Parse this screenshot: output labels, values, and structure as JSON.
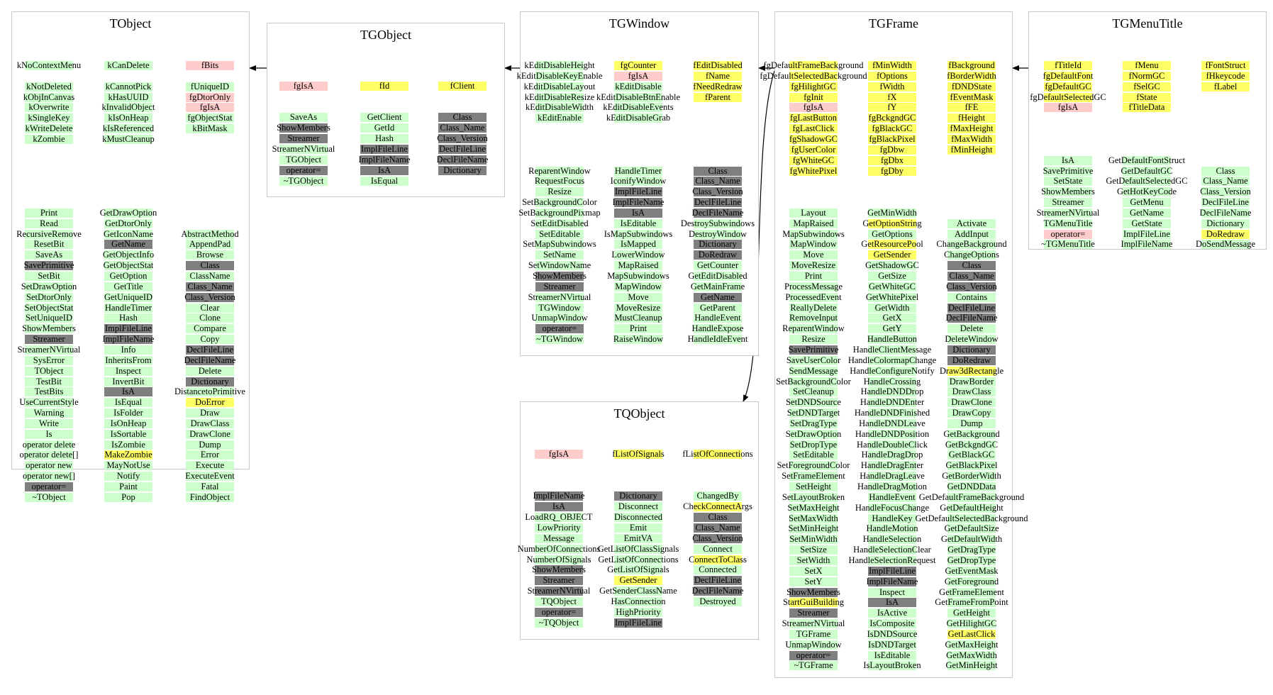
{
  "colors": {
    "green": "#ccffcc",
    "pink": "#ffcccc",
    "yellow": "#ffff66",
    "gray": "#7f7f7f",
    "box_border": "#c8c8c8",
    "edge": "#000000"
  },
  "classes": [
    {
      "name": "TObject",
      "columns": [
        [
          "g:kNoContextMenu",
          "",
          "g:kNotDeleted",
          "g:kObjInCanvas",
          "g:kOverwrite",
          "g:kSingleKey",
          "g:kWriteDelete",
          "g:kZombie",
          "",
          "",
          "",
          "",
          "",
          "",
          "g:Print",
          "g:Read",
          "g:RecursiveRemove",
          "g:ResetBit",
          "g:SaveAs",
          "d:SavePrimitive",
          "g:SetBit",
          "g:SetDrawOption",
          "g:SetDtorOnly",
          "g:SetObjectStat",
          "g:SetUniqueID",
          "g:ShowMembers",
          "d:Streamer",
          "g:StreamerNVirtual",
          "g:SysError",
          "g:TObject",
          "g:TestBit",
          "g:TestBits",
          "g:UseCurrentStyle",
          "g:Warning",
          "g:Write",
          "g:Is",
          "g:operator delete",
          "g:operator delete[]",
          "g:operator new",
          "g:operator new[]",
          "d:operator=",
          "g:~TObject"
        ],
        [
          "g:kCanDelete",
          "",
          "g:kCannotPick",
          "g:kHasUUID",
          "g:kInvalidObject",
          "g:kIsOnHeap",
          "g:kIsReferenced",
          "g:kMustCleanup",
          "",
          "",
          "",
          "",
          "",
          "",
          "g:GetDrawOption",
          "g:GetDtorOnly",
          "g:GetIconName",
          "d:GetName",
          "g:GetObjectInfo",
          "g:GetObjectStat",
          "g:GetOption",
          "g:GetTitle",
          "g:GetUniqueID",
          "g:HandleTimer",
          "g:Hash",
          "d:ImplFileLine",
          "d:ImplFileName",
          "g:Info",
          "g:InheritsFrom",
          "g:Inspect",
          "g:InvertBit",
          "d:IsA",
          "g:IsEqual",
          "g:IsFolder",
          "g:IsOnHeap",
          "g:IsSortable",
          "g:IsZombie",
          "y:MakeZombie",
          "g:MayNotUse",
          "g:Notify",
          "g:Paint",
          "g:Pop"
        ],
        [
          "r:fBits",
          "",
          "g:fUniqueID",
          "r:fgDtorOnly",
          "r:fgIsA",
          "g:fgObjectStat",
          "g:kBitMask",
          "",
          "",
          "",
          "",
          "",
          "",
          "",
          "",
          "",
          "g:AbstractMethod",
          "g:AppendPad",
          "g:Browse",
          "d:Class",
          "g:ClassName",
          "d:Class_Name",
          "d:Class_Version",
          "g:Clear",
          "g:Clone",
          "g:Compare",
          "g:Copy",
          "d:DeclFileLine",
          "d:DeclFileName",
          "g:Delete",
          "d:Dictionary",
          "g:DistancetoPrimitive",
          "y:DoError",
          "g:Draw",
          "g:DrawClass",
          "g:DrawClone",
          "g:Dump",
          "g:Error",
          "g:Execute",
          "g:ExecuteEvent",
          "g:Fatal",
          "g:FindObject"
        ]
      ]
    },
    {
      "name": "TGObject",
      "columns": [
        [
          "",
          "r:fgIsA",
          "",
          "",
          "g:SaveAs",
          "d:ShowMembers",
          "d:Streamer",
          "g:StreamerNVirtual",
          "g:TGObject",
          "d:operator=",
          "g:~TGObject"
        ],
        [
          "",
          "y:fId",
          "",
          "",
          "g:GetClient",
          "g:GetId",
          "g:Hash",
          "d:ImplFileLine",
          "d:ImplFileName",
          "d:IsA",
          "g:IsEqual"
        ],
        [
          "",
          "y:fClient",
          "",
          "",
          "d:Class",
          "d:Class_Name",
          "d:Class_Version",
          "d:DeclFileLine",
          "d:DeclFileName",
          "d:Dictionary",
          ""
        ]
      ]
    },
    {
      "name": "TGWindow",
      "columns": [
        [
          "g:kEditDisableHeight",
          "g:kEditDisableKeyEnable",
          "g:kEditDisableLayout",
          "g:kEditDisableResize",
          "g:kEditDisableWidth",
          "g:kEditEnable",
          "",
          "",
          "",
          "",
          "g:ReparentWindow",
          "g:RequestFocus",
          "g:Resize",
          "g:SetBackgroundColor",
          "g:SetBackgroundPixmap",
          "g:SetEditDisabled",
          "g:SetEditable",
          "g:SetMapSubwindows",
          "g:SetName",
          "g:SetWindowName",
          "d:ShowMembers",
          "d:Streamer",
          "g:StreamerNVirtual",
          "g:TGWindow",
          "g:UnmapWindow",
          "d:operator=",
          "g:~TGWindow"
        ],
        [
          "y:fgCounter",
          "r:fgIsA",
          "g:kEditDisable",
          "g:kEditDisableBtnEnable",
          "g:kEditDisableEvents",
          "g:kEditDisableGrab",
          "",
          "",
          "",
          "",
          "g:HandleTimer",
          "g:IconifyWindow",
          "d:ImplFileLine",
          "d:ImplFileName",
          "d:IsA",
          "g:IsEditable",
          "g:IsMapSubwindows",
          "g:IsMapped",
          "g:LowerWindow",
          "g:MapRaised",
          "g:MapSubwindows",
          "g:MapWindow",
          "g:Move",
          "g:MoveResize",
          "g:MustCleanup",
          "g:Print",
          "g:RaiseWindow"
        ],
        [
          "y:fEditDisabled",
          "y:fName",
          "y:fNeedRedraw",
          "y:fParent",
          "",
          "",
          "",
          "",
          "",
          "",
          "d:Class",
          "d:Class_Name",
          "d:Class_Version",
          "d:DeclFileLine",
          "d:DeclFileName",
          "g:DestroySubwindows",
          "g:DestroyWindow",
          "d:Dictionary",
          "d:DoRedraw",
          "g:GetCounter",
          "g:GetEditDisabled",
          "g:GetMainFrame",
          "d:GetName",
          "g:GetParent",
          "g:HandleEvent",
          "g:HandleExpose",
          "g:HandleIdleEvent"
        ]
      ]
    },
    {
      "name": "TQObject",
      "columns": [
        [
          "r:fgIsA",
          "",
          "",
          "",
          "d:ImplFileName",
          "d:IsA",
          "g:LoadRQ_OBJECT",
          "g:LowPriority",
          "g:Message",
          "g:NumberOfConnections",
          "g:NumberOfSignals",
          "d:ShowMembers",
          "d:Streamer",
          "d:StreamerNVirtual",
          "g:TQObject",
          "d:operator=",
          "g:~TQObject"
        ],
        [
          "y:fListOfSignals",
          "",
          "",
          "",
          "d:Dictionary",
          "g:Disconnect",
          "g:Disconnected",
          "g:Emit",
          "g:EmitVA",
          "g:GetListOfClassSignals",
          "g:GetListOfConnections",
          "g:GetListOfSignals",
          "y:GetSender",
          "g:GetSenderClassName",
          "g:HasConnection",
          "g:HighPriority",
          "d:ImplFileLine"
        ],
        [
          "y:fListOfConnections",
          "",
          "",
          "",
          "g:ChangedBy",
          "y:CheckConnectArgs",
          "d:Class",
          "d:Class_Name",
          "d:Class_Version",
          "g:Connect",
          "y:ConnectToClass",
          "g:Connected",
          "d:DeclFileLine",
          "d:DeclFileName",
          "g:Destroyed",
          "",
          ""
        ]
      ]
    },
    {
      "name": "TGFrame",
      "columns": [
        [
          "y:fgDefaultFrameBackground",
          "y:fgDefaultSelectedBackground",
          "y:fgHilightGC",
          "y:fgInit",
          "r:fgIsA",
          "y:fgLastButton",
          "y:fgLastClick",
          "y:fgShadowGC",
          "y:fgUserColor",
          "y:fgWhiteGC",
          "y:fgWhitePixel",
          "",
          "",
          "",
          "g:Layout",
          "g:MapRaised",
          "g:MapSubwindows",
          "g:MapWindow",
          "g:Move",
          "g:MoveResize",
          "g:Print",
          "g:ProcessMessage",
          "g:ProcessedEvent",
          "g:ReallyDelete",
          "g:RemoveInput",
          "g:ReparentWindow",
          "g:Resize",
          "d:SavePrimitive",
          "g:SaveUserColor",
          "g:SendMessage",
          "g:SetBackgroundColor",
          "g:SetCleanup",
          "g:SetDNDSource",
          "g:SetDNDTarget",
          "g:SetDragType",
          "g:SetDrawOption",
          "g:SetDropType",
          "g:SetEditable",
          "g:SetForegroundColor",
          "g:SetFrameElement",
          "g:SetHeight",
          "g:SetLayoutBroken",
          "g:SetMaxHeight",
          "g:SetMaxWidth",
          "g:SetMinHeight",
          "g:SetMinWidth",
          "g:SetSize",
          "g:SetWidth",
          "g:SetX",
          "g:SetY",
          "d:ShowMembers",
          "y:StartGuiBuilding",
          "d:Streamer",
          "g:StreamerNVirtual",
          "g:TGFrame",
          "g:UnmapWindow",
          "d:operator=",
          "g:~TGFrame"
        ],
        [
          "y:fMinWidth",
          "y:fOptions",
          "y:fWidth",
          "y:fX",
          "y:fY",
          "y:fgBckgndGC",
          "y:fgBlackGC",
          "y:fgBlackPixel",
          "y:fgDbw",
          "y:fgDbx",
          "y:fgDby",
          "",
          "",
          "",
          "g:GetMinWidth",
          "y:GetOptionString",
          "g:GetOptions",
          "y:GetResourcePool",
          "y:GetSender",
          "g:GetShadowGC",
          "g:GetSize",
          "g:GetWhiteGC",
          "g:GetWhitePixel",
          "g:GetWidth",
          "g:GetX",
          "g:GetY",
          "g:HandleButton",
          "g:HandleClientMessage",
          "g:HandleColormapChange",
          "g:HandleConfigureNotify",
          "g:HandleCrossing",
          "g:HandleDNDDrop",
          "g:HandleDNDEnter",
          "g:HandleDNDFinished",
          "g:HandleDNDLeave",
          "g:HandleDNDPosition",
          "g:HandleDoubleClick",
          "g:HandleDragDrop",
          "g:HandleDragEnter",
          "g:HandleDragLeave",
          "g:HandleDragMotion",
          "g:HandleEvent",
          "g:HandleFocusChange",
          "g:HandleKey",
          "g:HandleMotion",
          "g:HandleSelection",
          "g:HandleSelectionClear",
          "g:HandleSelectionRequest",
          "d:ImplFileLine",
          "d:ImplFileName",
          "g:Inspect",
          "d:IsA",
          "g:IsActive",
          "g:IsComposite",
          "g:IsDNDSource",
          "g:IsDNDTarget",
          "g:IsEditable",
          "g:IsLayoutBroken"
        ],
        [
          "y:fBackground",
          "y:fBorderWidth",
          "y:fDNDState",
          "y:fEventMask",
          "y:fFE",
          "y:fHeight",
          "y:fMaxHeight",
          "y:fMaxWidth",
          "y:fMinHeight",
          "",
          "",
          "",
          "",
          "",
          "",
          "g:Activate",
          "g:AddInput",
          "g:ChangeBackground",
          "g:ChangeOptions",
          "d:Class",
          "d:Class_Name",
          "d:Class_Version",
          "g:Contains",
          "d:DeclFileLine",
          "d:DeclFileName",
          "g:Delete",
          "g:DeleteWindow",
          "d:Dictionary",
          "d:DoRedraw",
          "y:Draw3dRectangle",
          "g:DrawBorder",
          "g:DrawClass",
          "g:DrawClone",
          "g:DrawCopy",
          "g:Dump",
          "g:GetBackground",
          "g:GetBckgndGC",
          "g:GetBlackGC",
          "g:GetBlackPixel",
          "g:GetBorderWidth",
          "g:GetDNDData",
          "g:GetDefaultFrameBackground",
          "g:GetDefaultHeight",
          "g:GetDefaultSelectedBackground",
          "g:GetDefaultSize",
          "g:GetDefaultWidth",
          "g:GetDragType",
          "g:GetDropType",
          "g:GetEventMask",
          "g:GetForeground",
          "g:GetFrameElement",
          "g:GetFrameFromPoint",
          "g:GetHeight",
          "g:GetHilightGC",
          "y:GetLastClick",
          "g:GetMaxHeight",
          "g:GetMaxWidth",
          "g:GetMinHeight"
        ]
      ]
    },
    {
      "name": "TGMenuTitle",
      "columns": [
        [
          "y:fTitleId",
          "y:fgDefaultFont",
          "y:fgDefaultGC",
          "y:fgDefaultSelectedGC",
          "r:fgIsA",
          "",
          "",
          "",
          "",
          "g:IsA",
          "g:SavePrimitive",
          "g:SetState",
          "g:ShowMembers",
          "g:Streamer",
          "g:StreamerNVirtual",
          "g:TGMenuTitle",
          "r:operator=",
          "g:~TGMenuTitle"
        ],
        [
          "y:fMenu",
          "y:fNormGC",
          "y:fSelGC",
          "y:fState",
          "y:fTitleData",
          "",
          "",
          "",
          "",
          "g:GetDefaultFontStruct",
          "g:GetDefaultGC",
          "g:GetDefaultSelectedGC",
          "g:GetHotKeyCode",
          "g:GetMenu",
          "g:GetName",
          "g:GetState",
          "g:ImplFileLine",
          "g:ImplFileName"
        ],
        [
          "y:fFontStruct",
          "y:fHkeycode",
          "y:fLabel",
          "",
          "",
          "",
          "",
          "",
          "",
          "",
          "g:Class",
          "g:Class_Name",
          "g:Class_Version",
          "g:DeclFileLine",
          "g:DeclFileName",
          "g:Dictionary",
          "y:DoRedraw",
          "g:DoSendMessage"
        ]
      ]
    }
  ]
}
